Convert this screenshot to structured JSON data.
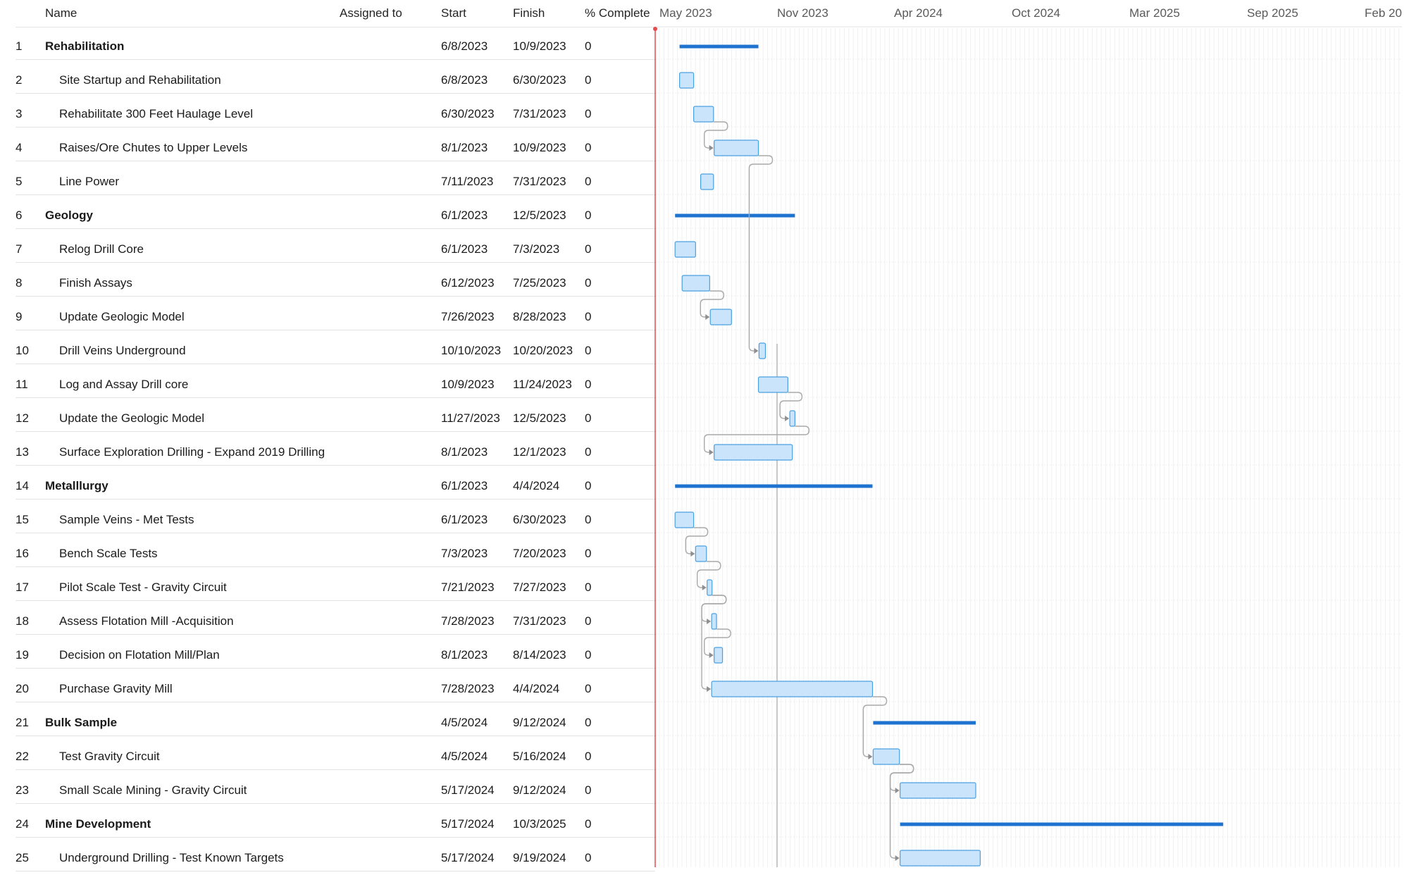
{
  "columns": {
    "name": "Name",
    "assigned": "Assigned to",
    "start": "Start",
    "finish": "Finish",
    "complete": "% Complete"
  },
  "timeline": {
    "ticks": [
      "May 2023",
      "Nov 2023",
      "Apr 2024",
      "Oct 2024",
      "Mar 2025",
      "Sep 2025",
      "Feb 20"
    ],
    "today_marker_color": "#e8494f",
    "summary_color": "#1f73d0",
    "task_fill": "#c9e4fb",
    "task_border": "#4aa0e0"
  },
  "tasks": [
    {
      "id": "1",
      "name": "Rehabilitation",
      "summary": true,
      "start": "6/8/2023",
      "finish": "10/9/2023",
      "complete": "0"
    },
    {
      "id": "2",
      "name": "Site Startup and Rehabilitation",
      "summary": false,
      "start": "6/8/2023",
      "finish": "6/30/2023",
      "complete": "0"
    },
    {
      "id": "3",
      "name": "Rehabilitate 300 Feet Haulage Level",
      "summary": false,
      "start": "6/30/2023",
      "finish": "7/31/2023",
      "complete": "0"
    },
    {
      "id": "4",
      "name": "Raises/Ore Chutes to Upper Levels",
      "summary": false,
      "start": "8/1/2023",
      "finish": "10/9/2023",
      "complete": "0"
    },
    {
      "id": "5",
      "name": "Line Power",
      "summary": false,
      "start": "7/11/2023",
      "finish": "7/31/2023",
      "complete": "0"
    },
    {
      "id": "6",
      "name": "Geology",
      "summary": true,
      "start": "6/1/2023",
      "finish": "12/5/2023",
      "complete": "0"
    },
    {
      "id": "7",
      "name": "Relog Drill Core",
      "summary": false,
      "start": "6/1/2023",
      "finish": "7/3/2023",
      "complete": "0"
    },
    {
      "id": "8",
      "name": "Finish Assays",
      "summary": false,
      "start": "6/12/2023",
      "finish": "7/25/2023",
      "complete": "0"
    },
    {
      "id": "9",
      "name": "Update Geologic Model",
      "summary": false,
      "start": "7/26/2023",
      "finish": "8/28/2023",
      "complete": "0"
    },
    {
      "id": "10",
      "name": "Drill Veins Underground",
      "summary": false,
      "start": "10/10/2023",
      "finish": "10/20/2023",
      "complete": "0"
    },
    {
      "id": "11",
      "name": "Log and Assay Drill core",
      "summary": false,
      "start": "10/9/2023",
      "finish": "11/24/2023",
      "complete": "0"
    },
    {
      "id": "12",
      "name": "Update the Geologic Model",
      "summary": false,
      "start": "11/27/2023",
      "finish": "12/5/2023",
      "complete": "0"
    },
    {
      "id": "13",
      "name": "Surface Exploration Drilling - Expand 2019 Drilling",
      "summary": false,
      "start": "8/1/2023",
      "finish": "12/1/2023",
      "complete": "0"
    },
    {
      "id": "14",
      "name": "Metalllurgy",
      "summary": true,
      "start": "6/1/2023",
      "finish": "4/4/2024",
      "complete": "0"
    },
    {
      "id": "15",
      "name": "Sample Veins - Met Tests",
      "summary": false,
      "start": "6/1/2023",
      "finish": "6/30/2023",
      "complete": "0"
    },
    {
      "id": "16",
      "name": "Bench Scale Tests",
      "summary": false,
      "start": "7/3/2023",
      "finish": "7/20/2023",
      "complete": "0"
    },
    {
      "id": "17",
      "name": "Pilot Scale Test - Gravity Circuit",
      "summary": false,
      "start": "7/21/2023",
      "finish": "7/27/2023",
      "complete": "0"
    },
    {
      "id": "18",
      "name": "Assess Flotation Mill -Acquisition",
      "summary": false,
      "start": "7/28/2023",
      "finish": "7/31/2023",
      "complete": "0"
    },
    {
      "id": "19",
      "name": "Decision on Flotation Mill/Plan",
      "summary": false,
      "start": "8/1/2023",
      "finish": "8/14/2023",
      "complete": "0"
    },
    {
      "id": "20",
      "name": "Purchase Gravity Mill",
      "summary": false,
      "start": "7/28/2023",
      "finish": "4/4/2024",
      "complete": "0"
    },
    {
      "id": "21",
      "name": "Bulk Sample",
      "summary": true,
      "start": "4/5/2024",
      "finish": "9/12/2024",
      "complete": "0"
    },
    {
      "id": "22",
      "name": "Test Gravity Circuit",
      "summary": false,
      "start": "4/5/2024",
      "finish": "5/16/2024",
      "complete": "0"
    },
    {
      "id": "23",
      "name": "Small Scale Mining - Gravity Circuit",
      "summary": false,
      "start": "5/17/2024",
      "finish": "9/12/2024",
      "complete": "0"
    },
    {
      "id": "24",
      "name": "Mine Development",
      "summary": true,
      "start": "5/17/2024",
      "finish": "10/3/2025",
      "complete": "0"
    },
    {
      "id": "25",
      "name": "Underground Drilling - Test Known Targets",
      "summary": false,
      "start": "5/17/2024",
      "finish": "9/19/2024",
      "complete": "0"
    }
  ],
  "dependencies": [
    [
      "3",
      "4"
    ],
    [
      "4",
      "10"
    ],
    [
      "8",
      "9"
    ],
    [
      "11",
      "12"
    ],
    [
      "12",
      "13"
    ],
    [
      "15",
      "16"
    ],
    [
      "16",
      "17"
    ],
    [
      "17",
      "18"
    ],
    [
      "18",
      "19"
    ],
    [
      "17",
      "20"
    ],
    [
      "20",
      "22"
    ],
    [
      "22",
      "23"
    ],
    [
      "22",
      "25"
    ]
  ]
}
